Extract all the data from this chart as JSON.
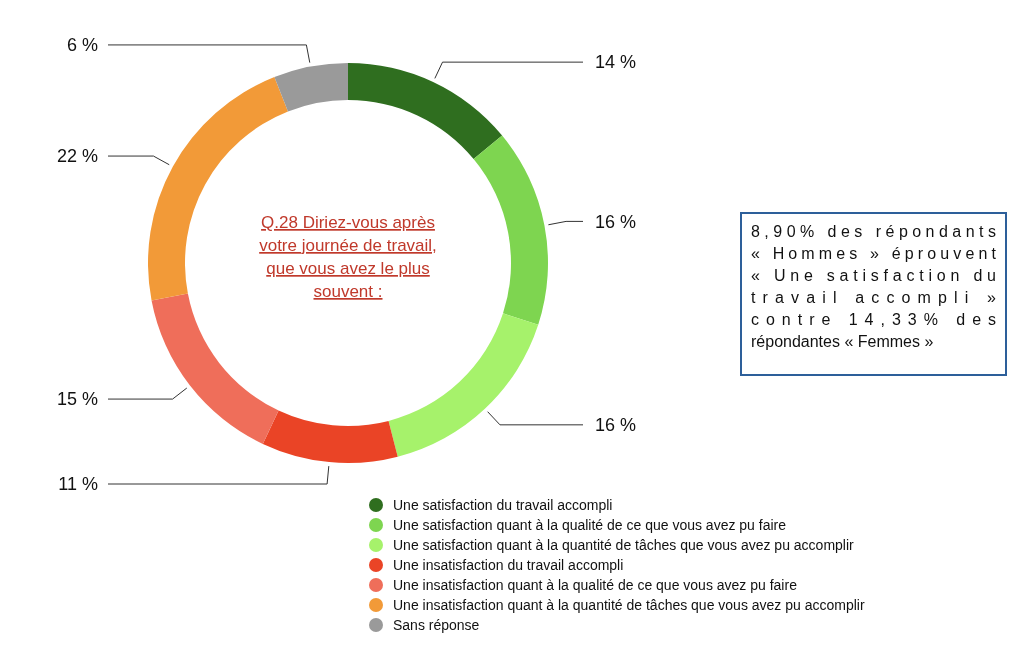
{
  "chart_data": {
    "type": "donut",
    "title": "Q.28 Diriez-vous après votre journée de travail, que vous avez le plus souvent :",
    "categories": [
      "Une satisfaction du travail accompli",
      "Une satisfaction quant à la qualité de ce que vous avez pu faire",
      "Une satisfaction quant à la quantité de tâches que vous avez pu accomplir",
      "Une insatisfaction du travail accompli",
      "Une insatisfaction quant à la qualité de ce que vous avez pu faire",
      "Une insatisfaction quant à la quantité de tâches que vous avez pu accomplir",
      "Sans réponse"
    ],
    "values": [
      14,
      16,
      16,
      11,
      15,
      22,
      6
    ],
    "colors": [
      "#2f6e1f",
      "#7ed550",
      "#a6f26b",
      "#ea4426",
      "#ef6e5a",
      "#f29a38",
      "#9a9a9a"
    ],
    "value_labels": [
      "14 %",
      "16 %",
      "16 %",
      "11 %",
      "15 %",
      "22 %",
      "6 %"
    ],
    "legend": "bottom",
    "annotations": [
      "8,90% des répondants « Hommes » éprouvent « Une satisfaction du travail accompli » contre 14,33% des répondantes « Femmes »"
    ]
  }
}
